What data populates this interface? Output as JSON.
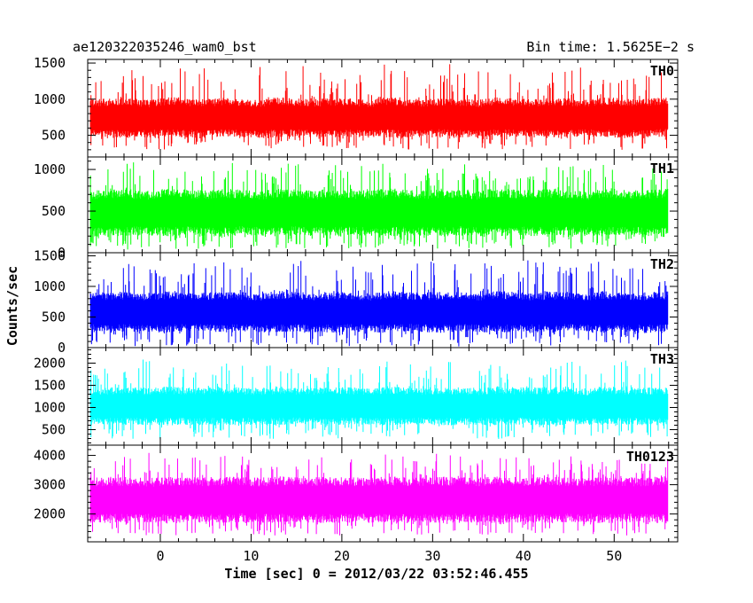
{
  "header": {
    "title": "ae120322035246_wam0_bst",
    "bin_time": "Bin time: 1.5625E−2 s"
  },
  "chart_data": {
    "type": "line",
    "title": "ae120322035246_wam0_bst",
    "xlabel": "Time [sec] 0 = 2012/03/22 03:52:46.455",
    "ylabel": "Counts/sec",
    "xlim": [
      -8.0,
      57.0
    ],
    "x_ticks": [
      0,
      10,
      20,
      30,
      40,
      50
    ],
    "x_range_data": [
      -7.7,
      55.9
    ],
    "shared_x": true,
    "panels": [
      {
        "name": "TH0",
        "color": "#ff0000",
        "ylim": [
          200,
          1550
        ],
        "y_ticks": [
          500,
          1000,
          1500
        ],
        "sample_x": [
          -7,
          -5,
          -3,
          -1,
          1,
          3,
          5,
          7,
          9,
          11,
          13,
          15,
          17,
          19,
          21,
          23,
          25,
          27,
          29,
          31,
          33,
          35,
          37,
          39,
          41,
          43,
          45,
          47,
          49,
          51,
          53,
          55
        ],
        "envelope_min": [
          330,
          300,
          290,
          310,
          300,
          320,
          300,
          290,
          310,
          300,
          320,
          300,
          290,
          310,
          320,
          300,
          290,
          300,
          310,
          300,
          290,
          310,
          300,
          320,
          300,
          290,
          300,
          310,
          300,
          290,
          310,
          300
        ],
        "envelope_low": [
          480,
          470,
          460,
          470,
          480,
          470,
          460,
          480,
          470,
          460,
          470,
          480,
          470,
          460,
          470,
          480,
          470,
          460,
          470,
          480,
          470,
          460,
          470,
          480,
          470,
          460,
          470,
          480,
          470,
          460,
          470,
          480
        ],
        "envelope_high": [
          1000,
          1020,
          1010,
          990,
          1030,
          1010,
          1000,
          1020,
          1010,
          990,
          1030,
          1010,
          1000,
          1020,
          1010,
          990,
          1030,
          1010,
          1000,
          1020,
          1010,
          990,
          1030,
          1010,
          1000,
          1020,
          1010,
          990,
          1030,
          1010,
          1000,
          1020
        ],
        "envelope_max": [
          1250,
          1400,
          1500,
          1450,
          1350,
          1500,
          1420,
          1380,
          1500,
          1470,
          1400,
          1450,
          1500,
          1420,
          1380,
          1450,
          1500,
          1400,
          1430,
          1480,
          1500,
          1420,
          1390,
          1450,
          1500,
          1410,
          1440,
          1480,
          1400,
          1420,
          1380,
          1450
        ]
      },
      {
        "name": "TH1",
        "color": "#00ff00",
        "ylim": [
          0,
          1150
        ],
        "y_ticks": [
          0,
          500,
          1000
        ],
        "sample_x": [
          -7,
          -5,
          -3,
          -1,
          1,
          3,
          5,
          7,
          9,
          11,
          13,
          15,
          17,
          19,
          21,
          23,
          25,
          27,
          29,
          31,
          33,
          35,
          37,
          39,
          41,
          43,
          45,
          47,
          49,
          51,
          53,
          55
        ],
        "envelope_min": [
          60,
          40,
          30,
          50,
          40,
          30,
          60,
          40,
          30,
          50,
          40,
          30,
          60,
          40,
          30,
          50,
          40,
          30,
          60,
          40,
          30,
          50,
          40,
          30,
          60,
          40,
          30,
          50,
          40,
          30,
          60,
          40
        ],
        "envelope_low": [
          200,
          190,
          210,
          200,
          190,
          210,
          200,
          190,
          210,
          200,
          190,
          210,
          200,
          190,
          210,
          200,
          190,
          210,
          200,
          190,
          210,
          200,
          190,
          210,
          200,
          190,
          210,
          200,
          190,
          210,
          200,
          190
        ],
        "envelope_high": [
          750,
          770,
          760,
          740,
          780,
          760,
          750,
          770,
          760,
          740,
          780,
          760,
          750,
          770,
          760,
          740,
          780,
          760,
          750,
          770,
          760,
          740,
          780,
          760,
          750,
          770,
          760,
          740,
          780,
          760,
          750,
          770
        ],
        "envelope_max": [
          950,
          1050,
          1100,
          1000,
          1080,
          1120,
          1000,
          1060,
          1100,
          1020,
          1080,
          1110,
          1000,
          1050,
          1100,
          1030,
          1080,
          1120,
          1000,
          1060,
          1100,
          1020,
          1080,
          1110,
          1000,
          1050,
          1100,
          1030,
          1080,
          1120,
          1000,
          1060
        ]
      },
      {
        "name": "TH2",
        "color": "#0000ff",
        "ylim": [
          0,
          1550
        ],
        "y_ticks": [
          0,
          500,
          1000,
          1500
        ],
        "sample_x": [
          -7,
          -5,
          -3,
          -1,
          1,
          3,
          5,
          7,
          9,
          11,
          13,
          15,
          17,
          19,
          21,
          23,
          25,
          27,
          29,
          31,
          33,
          35,
          37,
          39,
          41,
          43,
          45,
          47,
          49,
          51,
          53,
          55
        ],
        "envelope_min": [
          40,
          30,
          20,
          40,
          30,
          20,
          40,
          30,
          20,
          40,
          30,
          20,
          40,
          30,
          20,
          40,
          30,
          20,
          40,
          30,
          20,
          40,
          30,
          20,
          40,
          30,
          20,
          40,
          30,
          20,
          40,
          30
        ],
        "envelope_low": [
          250,
          240,
          260,
          250,
          240,
          260,
          250,
          240,
          260,
          250,
          240,
          260,
          250,
          240,
          260,
          250,
          240,
          260,
          250,
          240,
          260,
          250,
          240,
          260,
          250,
          240,
          260,
          250,
          240,
          260,
          250,
          240
        ],
        "envelope_high": [
          900,
          920,
          910,
          890,
          930,
          910,
          900,
          920,
          910,
          890,
          930,
          910,
          900,
          920,
          910,
          890,
          930,
          910,
          900,
          920,
          910,
          890,
          930,
          910,
          900,
          920,
          910,
          890,
          930,
          910,
          900,
          920
        ],
        "envelope_max": [
          1150,
          1300,
          1500,
          1350,
          1250,
          1450,
          1300,
          1400,
          1500,
          1350,
          1300,
          1450,
          1400,
          1300,
          1500,
          1350,
          1450,
          1300,
          1500,
          1400,
          1350,
          1450,
          1300,
          1400,
          1500,
          1350,
          1300,
          1450,
          1400,
          1300,
          1350,
          1250
        ]
      },
      {
        "name": "TH3",
        "color": "#00ffff",
        "ylim": [
          150,
          2350
        ],
        "y_ticks": [
          500,
          1000,
          1500,
          2000
        ],
        "sample_x": [
          -7,
          -5,
          -3,
          -1,
          1,
          3,
          5,
          7,
          9,
          11,
          13,
          15,
          17,
          19,
          21,
          23,
          25,
          27,
          29,
          31,
          33,
          35,
          37,
          39,
          41,
          43,
          45,
          47,
          49,
          51,
          53,
          55
        ],
        "envelope_min": [
          300,
          280,
          270,
          290,
          280,
          270,
          300,
          280,
          270,
          290,
          280,
          270,
          300,
          280,
          270,
          290,
          280,
          270,
          300,
          280,
          270,
          290,
          280,
          270,
          300,
          280,
          270,
          290,
          280,
          270,
          300,
          280
        ],
        "envelope_low": [
          600,
          590,
          610,
          600,
          590,
          610,
          600,
          590,
          610,
          600,
          590,
          610,
          600,
          590,
          610,
          600,
          590,
          610,
          600,
          590,
          610,
          600,
          590,
          610,
          600,
          590,
          610,
          600,
          590,
          610,
          600,
          590
        ],
        "envelope_high": [
          1450,
          1470,
          1460,
          1440,
          1480,
          1460,
          1450,
          1470,
          1460,
          1440,
          1480,
          1460,
          1450,
          1470,
          1460,
          1440,
          1480,
          1460,
          1450,
          1470,
          1460,
          1440,
          1480,
          1460,
          1450,
          1470,
          1460,
          1440,
          1480,
          1460,
          1450,
          1470
        ],
        "envelope_max": [
          1850,
          1950,
          2000,
          2300,
          1950,
          2050,
          1900,
          2000,
          2050,
          1950,
          2000,
          1900,
          2050,
          1950,
          2000,
          1900,
          2050,
          2000,
          1950,
          2100,
          2000,
          1900,
          2050,
          1950,
          2000,
          1900,
          2050,
          1950,
          2000,
          2100,
          1950,
          2050
        ]
      },
      {
        "name": "TH0123",
        "color": "#ff00ff",
        "ylim": [
          1050,
          4350
        ],
        "y_ticks": [
          2000,
          3000,
          4000
        ],
        "sample_x": [
          -7,
          -5,
          -3,
          -1,
          1,
          3,
          5,
          7,
          9,
          11,
          13,
          15,
          17,
          19,
          21,
          23,
          25,
          27,
          29,
          31,
          33,
          35,
          37,
          39,
          41,
          43,
          45,
          47,
          49,
          51,
          53,
          55
        ],
        "envelope_min": [
          1300,
          1250,
          1200,
          1280,
          1250,
          1200,
          1300,
          1250,
          1200,
          1280,
          1250,
          1200,
          1300,
          1250,
          1200,
          1280,
          1250,
          1200,
          1300,
          1250,
          1200,
          1280,
          1250,
          1200,
          1300,
          1250,
          1200,
          1280,
          1250,
          1200,
          1300,
          1250
        ],
        "envelope_low": [
          1700,
          1680,
          1720,
          1700,
          1680,
          1720,
          1700,
          1680,
          1720,
          1700,
          1680,
          1720,
          1700,
          1680,
          1720,
          1700,
          1680,
          1720,
          1700,
          1680,
          1720,
          1700,
          1680,
          1720,
          1700,
          1680,
          1720,
          1700,
          1680,
          1720,
          1700,
          1680
        ],
        "envelope_high": [
          3250,
          3280,
          3260,
          3240,
          3290,
          3260,
          3250,
          3280,
          3260,
          3240,
          3290,
          3260,
          3250,
          3280,
          3260,
          3240,
          3290,
          3260,
          3250,
          3280,
          3260,
          3240,
          3290,
          3260,
          3250,
          3280,
          3260,
          3240,
          3290,
          3260,
          3250,
          3280
        ],
        "envelope_max": [
          3700,
          3900,
          4000,
          4100,
          3950,
          4050,
          3900,
          4000,
          4050,
          3950,
          4000,
          3900,
          4100,
          3950,
          4000,
          3900,
          4050,
          4000,
          3950,
          4100,
          4000,
          3900,
          4050,
          3950,
          4000,
          3900,
          4050,
          3950,
          4000,
          4100,
          3950,
          4000
        ]
      }
    ]
  }
}
